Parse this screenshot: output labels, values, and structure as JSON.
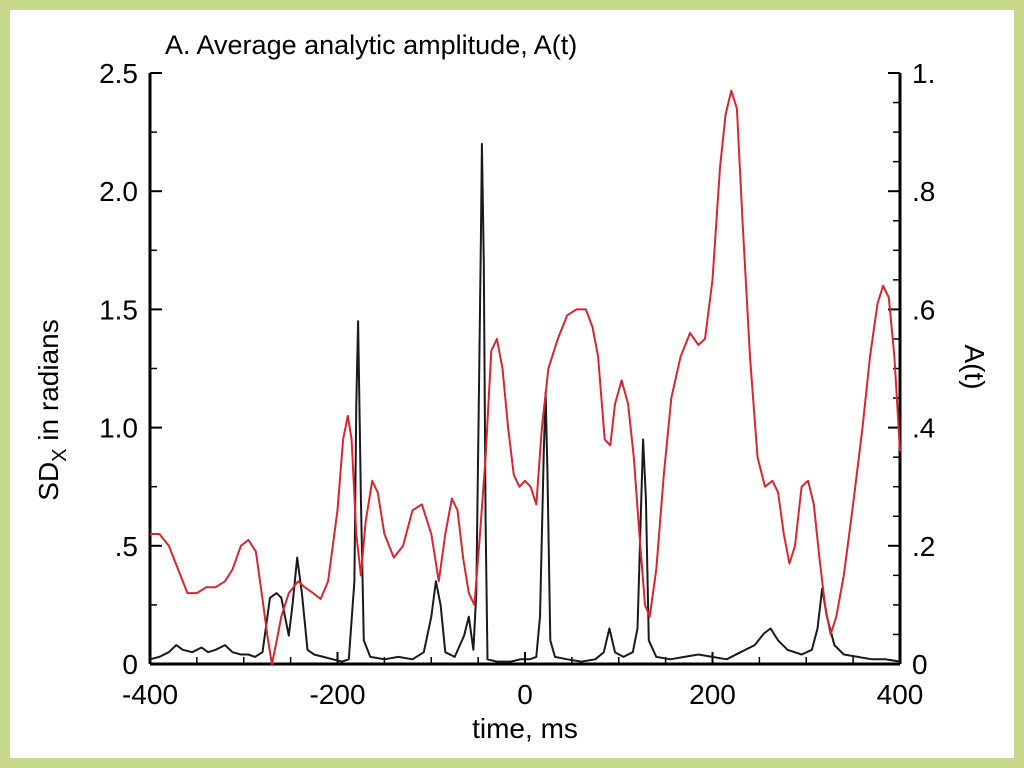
{
  "chart_data": {
    "type": "line",
    "title": "A. Average analytic amplitude, A(t)",
    "xlabel": "time, ms",
    "ylabel_left": "SDX in radians",
    "ylabel_right": "A(t)",
    "xlim": [
      -400,
      400
    ],
    "ylim_left": [
      0,
      2.5
    ],
    "ylim_right": [
      0,
      1.0
    ],
    "x_ticks": [
      -400,
      -200,
      0,
      200,
      400
    ],
    "x_tick_labels": [
      "-400",
      "-200",
      "0",
      "200",
      "400"
    ],
    "y_left_ticks": [
      0,
      0.5,
      1.0,
      1.5,
      2.0,
      2.5
    ],
    "y_left_tick_labels": [
      "0",
      ".5",
      "1.0",
      "1.5",
      "2.0",
      "2.5"
    ],
    "y_right_ticks": [
      0,
      0.2,
      0.4,
      0.6,
      0.8,
      1.0
    ],
    "y_right_tick_labels": [
      "0",
      ".2",
      ".4",
      ".6",
      ".8",
      "1."
    ],
    "grid": false,
    "colors": {
      "sd_series": "#1a1a1a",
      "amplitude_series": "#d9262e",
      "frame_background": "#c9d98c"
    },
    "series": [
      {
        "axis": "left",
        "color": "#1a1a1a",
        "points": [
          [
            -400,
            0.02
          ],
          [
            -390,
            0.03
          ],
          [
            -380,
            0.05
          ],
          [
            -372,
            0.08
          ],
          [
            -365,
            0.06
          ],
          [
            -355,
            0.05
          ],
          [
            -345,
            0.07
          ],
          [
            -338,
            0.05
          ],
          [
            -330,
            0.06
          ],
          [
            -320,
            0.08
          ],
          [
            -312,
            0.05
          ],
          [
            -303,
            0.04
          ],
          [
            -295,
            0.04
          ],
          [
            -288,
            0.03
          ],
          [
            -280,
            0.05
          ],
          [
            -272,
            0.28
          ],
          [
            -265,
            0.3
          ],
          [
            -260,
            0.28
          ],
          [
            -252,
            0.12
          ],
          [
            -248,
            0.25
          ],
          [
            -243,
            0.45
          ],
          [
            -238,
            0.3
          ],
          [
            -232,
            0.06
          ],
          [
            -225,
            0.04
          ],
          [
            -215,
            0.03
          ],
          [
            -205,
            0.02
          ],
          [
            -195,
            0.01
          ],
          [
            -188,
            0.02
          ],
          [
            -182,
            0.35
          ],
          [
            -180,
            1.1
          ],
          [
            -178,
            1.45
          ],
          [
            -175,
            0.7
          ],
          [
            -172,
            0.1
          ],
          [
            -165,
            0.03
          ],
          [
            -150,
            0.02
          ],
          [
            -135,
            0.03
          ],
          [
            -120,
            0.02
          ],
          [
            -108,
            0.05
          ],
          [
            -100,
            0.2
          ],
          [
            -95,
            0.35
          ],
          [
            -90,
            0.25
          ],
          [
            -85,
            0.05
          ],
          [
            -75,
            0.03
          ],
          [
            -65,
            0.12
          ],
          [
            -60,
            0.2
          ],
          [
            -55,
            0.06
          ],
          [
            -52,
            0.3
          ],
          [
            -49,
            1.2
          ],
          [
            -47,
            1.8
          ],
          [
            -46,
            2.2
          ],
          [
            -44,
            1.7
          ],
          [
            -42,
            0.6
          ],
          [
            -40,
            0.02
          ],
          [
            -30,
            0.01
          ],
          [
            -15,
            0.01
          ],
          [
            -5,
            0.02
          ],
          [
            5,
            0.02
          ],
          [
            12,
            0.03
          ],
          [
            16,
            0.2
          ],
          [
            20,
            0.9
          ],
          [
            22,
            1.15
          ],
          [
            24,
            0.8
          ],
          [
            27,
            0.1
          ],
          [
            32,
            0.03
          ],
          [
            45,
            0.02
          ],
          [
            60,
            0.01
          ],
          [
            75,
            0.02
          ],
          [
            84,
            0.05
          ],
          [
            90,
            0.15
          ],
          [
            96,
            0.05
          ],
          [
            105,
            0.03
          ],
          [
            115,
            0.05
          ],
          [
            120,
            0.15
          ],
          [
            124,
            0.7
          ],
          [
            126,
            0.95
          ],
          [
            129,
            0.7
          ],
          [
            132,
            0.1
          ],
          [
            140,
            0.03
          ],
          [
            155,
            0.02
          ],
          [
            170,
            0.03
          ],
          [
            185,
            0.04
          ],
          [
            200,
            0.03
          ],
          [
            215,
            0.02
          ],
          [
            230,
            0.05
          ],
          [
            245,
            0.08
          ],
          [
            255,
            0.13
          ],
          [
            262,
            0.15
          ],
          [
            270,
            0.1
          ],
          [
            280,
            0.06
          ],
          [
            295,
            0.04
          ],
          [
            306,
            0.06
          ],
          [
            312,
            0.15
          ],
          [
            317,
            0.32
          ],
          [
            322,
            0.2
          ],
          [
            330,
            0.08
          ],
          [
            340,
            0.04
          ],
          [
            355,
            0.03
          ],
          [
            370,
            0.02
          ],
          [
            385,
            0.02
          ],
          [
            400,
            0.01
          ]
        ]
      },
      {
        "axis": "right",
        "color": "#d9262e",
        "points": [
          [
            -400,
            0.22
          ],
          [
            -390,
            0.22
          ],
          [
            -380,
            0.2
          ],
          [
            -370,
            0.16
          ],
          [
            -360,
            0.12
          ],
          [
            -350,
            0.12
          ],
          [
            -340,
            0.13
          ],
          [
            -330,
            0.13
          ],
          [
            -320,
            0.14
          ],
          [
            -312,
            0.16
          ],
          [
            -303,
            0.2
          ],
          [
            -295,
            0.21
          ],
          [
            -287,
            0.19
          ],
          [
            -280,
            0.11
          ],
          [
            -275,
            0.05
          ],
          [
            -270,
            0.0
          ],
          [
            -266,
            0.03
          ],
          [
            -260,
            0.08
          ],
          [
            -252,
            0.12
          ],
          [
            -242,
            0.14
          ],
          [
            -235,
            0.13
          ],
          [
            -226,
            0.12
          ],
          [
            -218,
            0.11
          ],
          [
            -210,
            0.14
          ],
          [
            -200,
            0.26
          ],
          [
            -194,
            0.38
          ],
          [
            -189,
            0.42
          ],
          [
            -185,
            0.38
          ],
          [
            -180,
            0.22
          ],
          [
            -175,
            0.15
          ],
          [
            -170,
            0.24
          ],
          [
            -163,
            0.31
          ],
          [
            -157,
            0.29
          ],
          [
            -150,
            0.22
          ],
          [
            -140,
            0.18
          ],
          [
            -130,
            0.2
          ],
          [
            -120,
            0.26
          ],
          [
            -110,
            0.27
          ],
          [
            -100,
            0.22
          ],
          [
            -92,
            0.14
          ],
          [
            -85,
            0.22
          ],
          [
            -78,
            0.28
          ],
          [
            -72,
            0.26
          ],
          [
            -66,
            0.18
          ],
          [
            -60,
            0.12
          ],
          [
            -54,
            0.1
          ],
          [
            -48,
            0.22
          ],
          [
            -42,
            0.35
          ],
          [
            -36,
            0.53
          ],
          [
            -30,
            0.55
          ],
          [
            -24,
            0.5
          ],
          [
            -18,
            0.4
          ],
          [
            -12,
            0.32
          ],
          [
            -6,
            0.3
          ],
          [
            0,
            0.31
          ],
          [
            6,
            0.3
          ],
          [
            12,
            0.27
          ],
          [
            18,
            0.4
          ],
          [
            25,
            0.5
          ],
          [
            35,
            0.55
          ],
          [
            45,
            0.59
          ],
          [
            55,
            0.6
          ],
          [
            65,
            0.6
          ],
          [
            72,
            0.57
          ],
          [
            78,
            0.52
          ],
          [
            85,
            0.38
          ],
          [
            91,
            0.37
          ],
          [
            96,
            0.44
          ],
          [
            103,
            0.48
          ],
          [
            110,
            0.44
          ],
          [
            116,
            0.35
          ],
          [
            122,
            0.22
          ],
          [
            128,
            0.1
          ],
          [
            133,
            0.08
          ],
          [
            140,
            0.16
          ],
          [
            148,
            0.32
          ],
          [
            156,
            0.45
          ],
          [
            166,
            0.52
          ],
          [
            176,
            0.56
          ],
          [
            185,
            0.54
          ],
          [
            192,
            0.55
          ],
          [
            200,
            0.65
          ],
          [
            208,
            0.84
          ],
          [
            214,
            0.93
          ],
          [
            220,
            0.97
          ],
          [
            226,
            0.94
          ],
          [
            232,
            0.75
          ],
          [
            240,
            0.52
          ],
          [
            248,
            0.35
          ],
          [
            256,
            0.3
          ],
          [
            264,
            0.31
          ],
          [
            270,
            0.29
          ],
          [
            276,
            0.22
          ],
          [
            282,
            0.17
          ],
          [
            288,
            0.2
          ],
          [
            295,
            0.3
          ],
          [
            302,
            0.31
          ],
          [
            308,
            0.27
          ],
          [
            314,
            0.18
          ],
          [
            320,
            0.1
          ],
          [
            326,
            0.05
          ],
          [
            332,
            0.08
          ],
          [
            340,
            0.15
          ],
          [
            350,
            0.27
          ],
          [
            360,
            0.4
          ],
          [
            368,
            0.52
          ],
          [
            376,
            0.61
          ],
          [
            382,
            0.64
          ],
          [
            388,
            0.62
          ],
          [
            394,
            0.52
          ],
          [
            400,
            0.36
          ]
        ]
      }
    ]
  }
}
